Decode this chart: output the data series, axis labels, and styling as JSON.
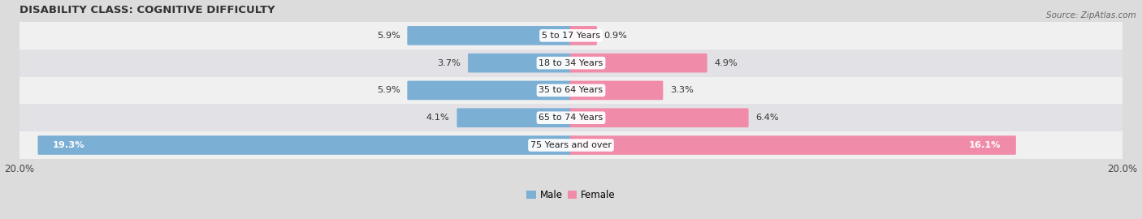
{
  "title": "DISABILITY CLASS: COGNITIVE DIFFICULTY",
  "source_text": "Source: ZipAtlas.com",
  "categories": [
    "5 to 17 Years",
    "18 to 34 Years",
    "35 to 64 Years",
    "65 to 74 Years",
    "75 Years and over"
  ],
  "male_values": [
    5.9,
    3.7,
    5.9,
    4.1,
    19.3
  ],
  "female_values": [
    0.9,
    4.9,
    3.3,
    6.4,
    16.1
  ],
  "male_color": "#7bafd4",
  "female_color": "#f08caa",
  "male_label": "Male",
  "female_label": "Female",
  "xlim": 20.0,
  "bg_color": "#dcdcdc",
  "row_color_light": "#f0f0f0",
  "row_color_dark": "#e2e2e6",
  "bar_height": 0.62,
  "title_fontsize": 9.5,
  "label_fontsize": 8.5,
  "tick_fontsize": 8.5,
  "value_fontsize": 8.2,
  "category_fontsize": 8.0
}
